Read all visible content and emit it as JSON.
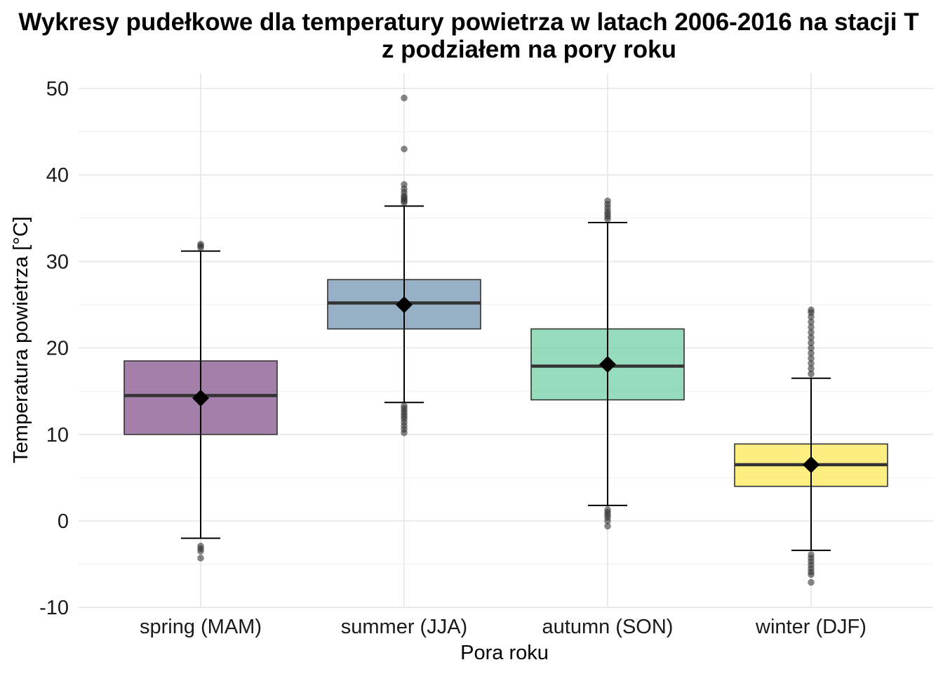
{
  "chart_data": {
    "type": "box",
    "title": "Wykresy pudełkowe dla temperatury powietrza w latach 2006-2016 na stacji T",
    "title_line2": "z podziałem na pory roku",
    "xlabel": "Pora roku",
    "ylabel": "Temperatura powietrza [°C]",
    "ylim": [
      -10,
      51
    ],
    "yticks": [
      -10,
      0,
      10,
      20,
      30,
      40,
      50
    ],
    "grid": true,
    "categories": [
      "spring (MAM)",
      "summer (JJA)",
      "autumn (SON)",
      "winter (DJF)"
    ],
    "series": [
      {
        "category": "spring (MAM)",
        "color": "#7a4a86",
        "fill_opacity": 0.7,
        "q1": 10.0,
        "median": 14.5,
        "q3": 18.5,
        "whisker_low": -2.0,
        "whisker_high": 31.2,
        "mean": 14.2,
        "outliers": [
          31.6,
          31.8,
          32.0,
          -2.9,
          -3.2,
          -3.5,
          -4.3
        ]
      },
      {
        "category": "summer (JJA)",
        "color": "#6c8fae",
        "fill_opacity": 0.7,
        "q1": 22.2,
        "median": 25.2,
        "q3": 27.9,
        "whisker_low": 13.7,
        "whisker_high": 36.4,
        "mean": 25.0,
        "outliers": [
          36.8,
          37.0,
          37.2,
          37.4,
          37.6,
          38.0,
          38.4,
          38.9,
          43.0,
          48.9,
          13.3,
          13.0,
          12.7,
          12.4,
          12.1,
          11.8,
          11.4,
          11.0,
          10.6,
          10.2
        ]
      },
      {
        "category": "autumn (SON)",
        "color": "#6acc9e",
        "fill_opacity": 0.7,
        "q1": 14.0,
        "median": 17.9,
        "q3": 22.2,
        "whisker_low": 1.8,
        "whisker_high": 34.5,
        "mean": 18.1,
        "outliers": [
          34.9,
          35.2,
          35.5,
          35.8,
          36.2,
          36.6,
          37.0,
          1.3,
          1.0,
          0.7,
          0.4,
          0.0,
          -0.6
        ]
      },
      {
        "category": "winter (DJF)",
        "color": "#fde74c",
        "fill_opacity": 0.7,
        "q1": 4.0,
        "median": 6.5,
        "q3": 8.9,
        "whisker_low": -3.4,
        "whisker_high": 16.5,
        "mean": 6.5,
        "outliers": [
          17.0,
          17.6,
          18.2,
          18.8,
          19.4,
          20.0,
          20.6,
          21.2,
          21.8,
          22.4,
          23.0,
          23.6,
          24.1,
          24.4,
          -3.9,
          -4.3,
          -4.7,
          -5.1,
          -5.5,
          -5.9,
          -6.2,
          -7.1
        ]
      }
    ]
  }
}
